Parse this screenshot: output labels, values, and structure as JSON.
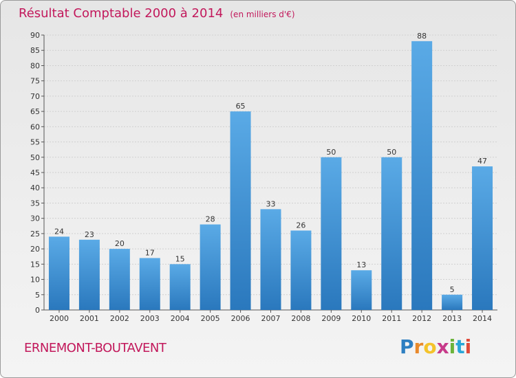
{
  "header": {
    "title": "Résultat Comptable 2000 à 2014",
    "subtitle": "(en milliers d'€)"
  },
  "footer": {
    "commune": "ERNEMONT-BOUTAVENT",
    "logo_letters": [
      "P",
      "r",
      "o",
      "x",
      "i",
      "t",
      "i"
    ],
    "logo_colors": [
      "#2e7fc1",
      "#e8892b",
      "#f4c32b",
      "#c73a8a",
      "#6bb33a",
      "#2aa6d8",
      "#e04a3a"
    ]
  },
  "colors": {
    "bar_light": "#5aaae6",
    "bar_dark": "#2a78bd",
    "axis": "#555555",
    "grid": "#d0d0d0",
    "text": "#333333",
    "accent": "#c2185b"
  },
  "chart_data": {
    "type": "bar",
    "title": "Résultat Comptable 2000 à 2014",
    "subtitle": "(en milliers d'€)",
    "xlabel": "",
    "ylabel": "",
    "categories": [
      "2000",
      "2001",
      "2002",
      "2003",
      "2004",
      "2005",
      "2006",
      "2007",
      "2008",
      "2009",
      "2010",
      "2011",
      "2012",
      "2013",
      "2014"
    ],
    "values": [
      24,
      23,
      20,
      17,
      15,
      28,
      65,
      33,
      26,
      50,
      13,
      50,
      88,
      5,
      47
    ],
    "ylim": [
      0,
      90
    ],
    "yticks": [
      0,
      5,
      10,
      15,
      20,
      25,
      30,
      35,
      40,
      45,
      50,
      55,
      60,
      65,
      70,
      75,
      80,
      85,
      90
    ],
    "grid": true,
    "data_labels": true
  }
}
